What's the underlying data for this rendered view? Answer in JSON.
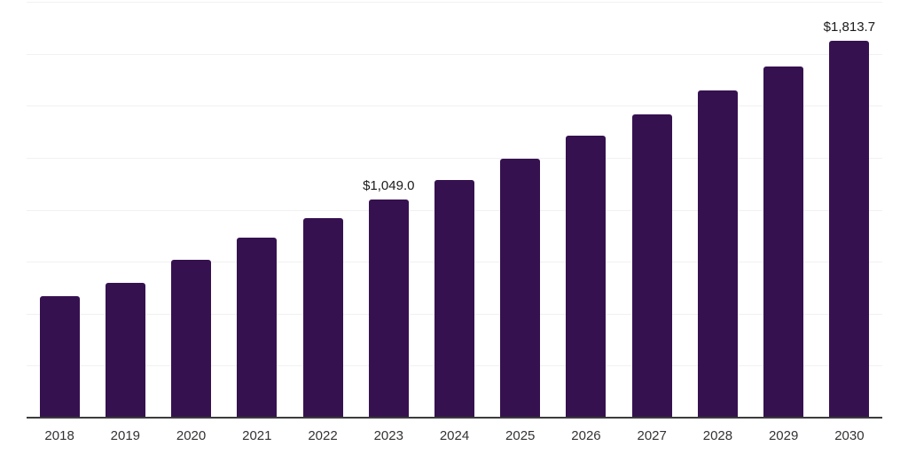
{
  "chart_data": {
    "type": "bar",
    "title": "",
    "xlabel": "",
    "ylabel": "",
    "categories": [
      "2018",
      "2019",
      "2020",
      "2021",
      "2022",
      "2023",
      "2024",
      "2025",
      "2026",
      "2027",
      "2028",
      "2029",
      "2030"
    ],
    "values": [
      585,
      650,
      760,
      865,
      960,
      1049.0,
      1145,
      1245,
      1355,
      1460,
      1572,
      1687,
      1813.7
    ],
    "labels": [
      "",
      "",
      "",
      "",
      "",
      "$1,049.0",
      "",
      "",
      "",
      "",
      "",
      "",
      "$1,813.7"
    ],
    "ylim": [
      0,
      2000
    ],
    "gridline_step": 250,
    "grid": true,
    "legend": false,
    "bar_color": "#361150",
    "gridline_color": "#f1f1f1",
    "axis_color": "#3c3c3c",
    "tick_label_color": "#333333",
    "data_label_color": "#1a1a1a"
  }
}
